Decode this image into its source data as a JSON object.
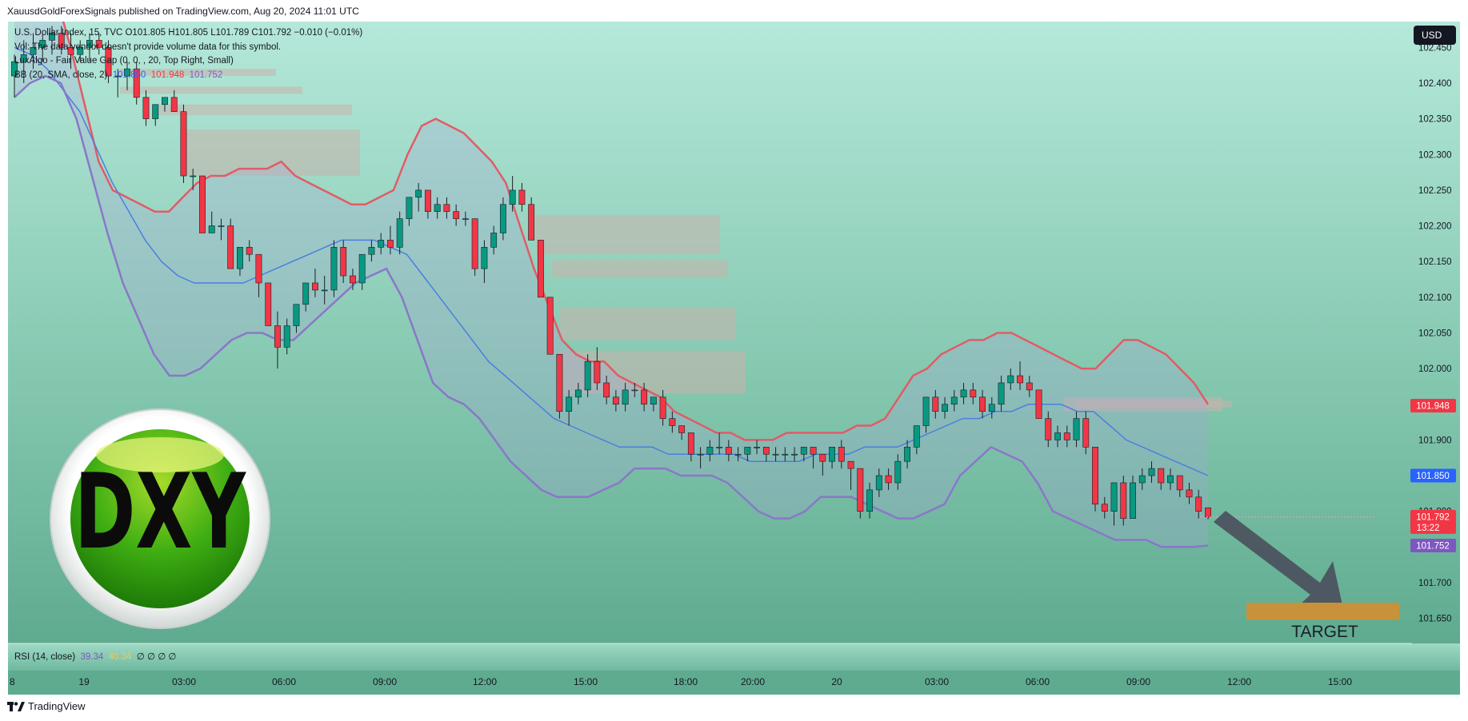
{
  "header": {
    "publish_line": "XauusdGoldForexSignals published on TradingView.com, Aug 20, 2024 11:01 UTC"
  },
  "legend": {
    "symbol_line": "U.S. Dollar Index, 15, TVC  O101.805  H101.805  L101.789  C101.792  −0.010 (−0.01%)",
    "vol_line": "Vol: The data vendor doesn't provide volume data for this symbol.",
    "fvg_line": "LuxAlgo - Fair Value Gap (0, 0, , 20, Top Right, Small)",
    "bb_name": "BB (20, SMA, close, 2)",
    "bb_basis": "101.850",
    "bb_upper": "101.948",
    "bb_lower": "101.752"
  },
  "currency_button": "USD",
  "rsi": {
    "label": "RSI (14, close)",
    "value1": "39.34",
    "value2": "40.34",
    "extra": "∅ ∅ ∅ ∅"
  },
  "annotation": {
    "logo_text": "DXY",
    "target_label": "TARGET"
  },
  "footer": {
    "brand": "TradingView"
  },
  "colors": {
    "bg_top": "#b3e6d9",
    "bg_bottom": "#5fae93",
    "up_candle": "#089981",
    "down_candle": "#f23645",
    "bb_upper": "#e05c66",
    "bb_basis": "#4a7fe0",
    "bb_lower": "#8a77c8",
    "target_box": "#c8923a",
    "arrow": "#4a4f5c",
    "logo_green": "#2f9a10"
  },
  "chart_data": {
    "type": "candlestick",
    "symbol": "U.S. Dollar Index",
    "timeframe": "15",
    "y_ticks": [
      "102.450",
      "102.400",
      "102.350",
      "102.300",
      "102.250",
      "102.200",
      "102.150",
      "102.100",
      "102.050",
      "102.000",
      "101.950",
      "101.900",
      "101.850",
      "101.800",
      "101.750",
      "101.700",
      "101.650"
    ],
    "ylim": [
      101.635,
      102.475
    ],
    "x_ticks": [
      "8",
      "19",
      "03:00",
      "06:00",
      "09:00",
      "12:00",
      "15:00",
      "18:00",
      "20:00",
      "20",
      "03:00",
      "06:00",
      "09:00",
      "12:00",
      "15:00"
    ],
    "price_labels": [
      {
        "value": 101.948,
        "text": "101.948",
        "color": "#f23645"
      },
      {
        "value": 101.85,
        "text": "101.850",
        "color": "#2962ff"
      },
      {
        "value": 101.792,
        "text": "101.792",
        "sub": "13:22",
        "color": "#f23645"
      },
      {
        "value": 101.752,
        "text": "101.752",
        "color": "#7e57c2"
      }
    ],
    "last_close": 101.792,
    "target_zone": [
      101.648,
      101.672
    ],
    "candles": [
      [
        102.41,
        102.44,
        102.38,
        102.43
      ],
      [
        102.43,
        102.46,
        102.4,
        102.44
      ],
      [
        102.44,
        102.47,
        102.42,
        102.45
      ],
      [
        102.45,
        102.47,
        102.43,
        102.46
      ],
      [
        102.46,
        102.48,
        102.44,
        102.47
      ],
      [
        102.47,
        102.48,
        102.44,
        102.45
      ],
      [
        102.45,
        102.47,
        102.42,
        102.44
      ],
      [
        102.44,
        102.46,
        102.43,
        102.45
      ],
      [
        102.45,
        102.47,
        102.43,
        102.46
      ],
      [
        102.46,
        102.47,
        102.44,
        102.45
      ],
      [
        102.45,
        102.46,
        102.4,
        102.41
      ],
      [
        102.41,
        102.42,
        102.38,
        102.41
      ],
      [
        102.41,
        102.43,
        102.39,
        102.42
      ],
      [
        102.42,
        102.43,
        102.37,
        102.38
      ],
      [
        102.38,
        102.39,
        102.34,
        102.35
      ],
      [
        102.35,
        102.37,
        102.34,
        102.37
      ],
      [
        102.37,
        102.38,
        102.36,
        102.38
      ],
      [
        102.38,
        102.39,
        102.36,
        102.36
      ],
      [
        102.36,
        102.37,
        102.26,
        102.27
      ],
      [
        102.27,
        102.28,
        102.25,
        102.27
      ],
      [
        102.27,
        102.27,
        102.19,
        102.19
      ],
      [
        102.19,
        102.22,
        102.19,
        102.2
      ],
      [
        102.2,
        102.21,
        102.18,
        102.2
      ],
      [
        102.2,
        102.21,
        102.14,
        102.14
      ],
      [
        102.14,
        102.17,
        102.13,
        102.17
      ],
      [
        102.17,
        102.18,
        102.15,
        102.16
      ],
      [
        102.16,
        102.16,
        102.1,
        102.12
      ],
      [
        102.12,
        102.12,
        102.06,
        102.06
      ],
      [
        102.06,
        102.08,
        102.0,
        102.03
      ],
      [
        102.03,
        102.07,
        102.02,
        102.06
      ],
      [
        102.06,
        102.09,
        102.05,
        102.09
      ],
      [
        102.09,
        102.12,
        102.08,
        102.12
      ],
      [
        102.12,
        102.14,
        102.1,
        102.11
      ],
      [
        102.11,
        102.13,
        102.09,
        102.11
      ],
      [
        102.11,
        102.18,
        102.1,
        102.17
      ],
      [
        102.17,
        102.18,
        102.12,
        102.13
      ],
      [
        102.13,
        102.14,
        102.11,
        102.12
      ],
      [
        102.12,
        102.16,
        102.11,
        102.16
      ],
      [
        102.16,
        102.18,
        102.15,
        102.17
      ],
      [
        102.17,
        102.19,
        102.16,
        102.18
      ],
      [
        102.18,
        102.2,
        102.16,
        102.17
      ],
      [
        102.17,
        102.22,
        102.16,
        102.21
      ],
      [
        102.21,
        102.24,
        102.2,
        102.24
      ],
      [
        102.24,
        102.26,
        102.22,
        102.25
      ],
      [
        102.25,
        102.25,
        102.21,
        102.22
      ],
      [
        102.22,
        102.24,
        102.21,
        102.23
      ],
      [
        102.23,
        102.24,
        102.21,
        102.22
      ],
      [
        102.22,
        102.23,
        102.2,
        102.21
      ],
      [
        102.21,
        102.22,
        102.2,
        102.21
      ],
      [
        102.21,
        102.21,
        102.13,
        102.14
      ],
      [
        102.14,
        102.18,
        102.12,
        102.17
      ],
      [
        102.17,
        102.2,
        102.16,
        102.19
      ],
      [
        102.19,
        102.24,
        102.18,
        102.23
      ],
      [
        102.23,
        102.27,
        102.22,
        102.25
      ],
      [
        102.25,
        102.26,
        102.22,
        102.23
      ],
      [
        102.23,
        102.24,
        102.18,
        102.18
      ],
      [
        102.18,
        102.18,
        102.1,
        102.1
      ],
      [
        102.1,
        102.1,
        102.02,
        102.02
      ],
      [
        102.02,
        102.02,
        101.93,
        101.94
      ],
      [
        101.94,
        101.97,
        101.92,
        101.96
      ],
      [
        101.96,
        101.98,
        101.95,
        101.97
      ],
      [
        101.97,
        102.02,
        101.96,
        102.01
      ],
      [
        102.01,
        102.03,
        101.97,
        101.98
      ],
      [
        101.98,
        101.99,
        101.95,
        101.96
      ],
      [
        101.96,
        101.97,
        101.94,
        101.95
      ],
      [
        101.95,
        101.98,
        101.94,
        101.97
      ],
      [
        101.97,
        101.98,
        101.96,
        101.97
      ],
      [
        101.97,
        101.98,
        101.94,
        101.95
      ],
      [
        101.95,
        101.96,
        101.94,
        101.96
      ],
      [
        101.96,
        101.97,
        101.92,
        101.93
      ],
      [
        101.93,
        101.94,
        101.91,
        101.92
      ],
      [
        101.92,
        101.92,
        101.9,
        101.91
      ],
      [
        101.91,
        101.91,
        101.87,
        101.88
      ],
      [
        101.88,
        101.89,
        101.86,
        101.88
      ],
      [
        101.88,
        101.9,
        101.87,
        101.89
      ],
      [
        101.89,
        101.91,
        101.88,
        101.89
      ],
      [
        101.89,
        101.9,
        101.87,
        101.88
      ],
      [
        101.88,
        101.89,
        101.87,
        101.88
      ],
      [
        101.88,
        101.89,
        101.87,
        101.89
      ],
      [
        101.89,
        101.9,
        101.88,
        101.89
      ],
      [
        101.89,
        101.89,
        101.87,
        101.88
      ],
      [
        101.88,
        101.89,
        101.87,
        101.88
      ],
      [
        101.88,
        101.89,
        101.87,
        101.88
      ],
      [
        101.88,
        101.89,
        101.87,
        101.88
      ],
      [
        101.88,
        101.89,
        101.87,
        101.89
      ],
      [
        101.89,
        101.89,
        101.86,
        101.88
      ],
      [
        101.88,
        101.88,
        101.85,
        101.87
      ],
      [
        101.87,
        101.89,
        101.86,
        101.89
      ],
      [
        101.89,
        101.9,
        101.86,
        101.87
      ],
      [
        101.87,
        101.87,
        101.83,
        101.86
      ],
      [
        101.86,
        101.86,
        101.79,
        101.8
      ],
      [
        101.8,
        101.84,
        101.79,
        101.83
      ],
      [
        101.83,
        101.86,
        101.82,
        101.85
      ],
      [
        101.85,
        101.86,
        101.83,
        101.84
      ],
      [
        101.84,
        101.88,
        101.83,
        101.87
      ],
      [
        101.87,
        101.9,
        101.86,
        101.89
      ],
      [
        101.89,
        101.92,
        101.88,
        101.92
      ],
      [
        101.92,
        101.96,
        101.91,
        101.96
      ],
      [
        101.96,
        101.97,
        101.93,
        101.94
      ],
      [
        101.94,
        101.96,
        101.93,
        101.95
      ],
      [
        101.95,
        101.97,
        101.94,
        101.96
      ],
      [
        101.96,
        101.98,
        101.95,
        101.97
      ],
      [
        101.97,
        101.98,
        101.95,
        101.96
      ],
      [
        101.96,
        101.97,
        101.93,
        101.94
      ],
      [
        101.94,
        101.96,
        101.93,
        101.95
      ],
      [
        101.95,
        101.99,
        101.94,
        101.98
      ],
      [
        101.98,
        102.0,
        101.97,
        101.99
      ],
      [
        101.99,
        102.01,
        101.97,
        101.98
      ],
      [
        101.98,
        101.99,
        101.96,
        101.97
      ],
      [
        101.97,
        101.97,
        101.93,
        101.93
      ],
      [
        101.93,
        101.94,
        101.89,
        101.9
      ],
      [
        101.9,
        101.92,
        101.89,
        101.91
      ],
      [
        101.91,
        101.92,
        101.89,
        101.9
      ],
      [
        101.9,
        101.94,
        101.89,
        101.93
      ],
      [
        101.93,
        101.94,
        101.88,
        101.89
      ],
      [
        101.89,
        101.89,
        101.8,
        101.81
      ],
      [
        101.81,
        101.82,
        101.79,
        101.8
      ],
      [
        101.8,
        101.84,
        101.78,
        101.84
      ],
      [
        101.84,
        101.85,
        101.78,
        101.79
      ],
      [
        101.79,
        101.85,
        101.79,
        101.84
      ],
      [
        101.84,
        101.86,
        101.83,
        101.85
      ],
      [
        101.85,
        101.87,
        101.84,
        101.86
      ],
      [
        101.86,
        101.86,
        101.83,
        101.84
      ],
      [
        101.84,
        101.86,
        101.83,
        101.85
      ],
      [
        101.85,
        101.85,
        101.82,
        101.83
      ],
      [
        101.83,
        101.84,
        101.81,
        101.82
      ],
      [
        101.82,
        101.83,
        101.79,
        101.8
      ],
      [
        101.805,
        101.805,
        101.789,
        101.792
      ]
    ],
    "bb_upper": [
      102.62,
      102.6,
      102.58,
      102.52,
      102.45,
      102.37,
      102.29,
      102.25,
      102.24,
      102.23,
      102.22,
      102.22,
      102.24,
      102.26,
      102.27,
      102.27,
      102.28,
      102.28,
      102.28,
      102.29,
      102.27,
      102.26,
      102.25,
      102.24,
      102.23,
      102.23,
      102.24,
      102.25,
      102.3,
      102.34,
      102.35,
      102.34,
      102.33,
      102.31,
      102.29,
      102.26,
      102.2,
      102.14,
      102.09,
      102.04,
      102.02,
      102.01,
      102.01,
      101.99,
      101.98,
      101.97,
      101.96,
      101.94,
      101.93,
      101.92,
      101.91,
      101.91,
      101.9,
      101.9,
      101.9,
      101.91,
      101.91,
      101.91,
      101.91,
      101.91,
      101.92,
      101.92,
      101.93,
      101.96,
      101.99,
      102.0,
      102.02,
      102.03,
      102.04,
      102.04,
      102.05,
      102.05,
      102.04,
      102.03,
      102.02,
      102.01,
      102.0,
      102.0,
      102.02,
      102.04,
      102.04,
      102.03,
      102.02,
      102.0,
      101.98,
      101.95
    ],
    "bb_basis": [
      102.45,
      102.44,
      102.42,
      102.39,
      102.36,
      102.31,
      102.26,
      102.22,
      102.18,
      102.15,
      102.13,
      102.12,
      102.12,
      102.12,
      102.12,
      102.13,
      102.14,
      102.15,
      102.16,
      102.17,
      102.18,
      102.18,
      102.18,
      102.17,
      102.16,
      102.13,
      102.1,
      102.07,
      102.04,
      102.01,
      101.99,
      101.97,
      101.95,
      101.93,
      101.92,
      101.91,
      101.9,
      101.89,
      101.89,
      101.89,
      101.88,
      101.88,
      101.88,
      101.88,
      101.88,
      101.87,
      101.87,
      101.87,
      101.87,
      101.88,
      101.88,
      101.88,
      101.89,
      101.89,
      101.89,
      101.9,
      101.91,
      101.92,
      101.93,
      101.93,
      101.94,
      101.94,
      101.95,
      101.95,
      101.95,
      101.94,
      101.94,
      101.92,
      101.9,
      101.89,
      101.88,
      101.87,
      101.86,
      101.85
    ],
    "bb_lower": [
      102.38,
      102.4,
      102.41,
      102.4,
      102.35,
      102.27,
      102.19,
      102.12,
      102.07,
      102.02,
      101.99,
      101.99,
      102.0,
      102.02,
      102.04,
      102.05,
      102.05,
      102.04,
      102.04,
      102.06,
      102.08,
      102.1,
      102.12,
      102.13,
      102.14,
      102.1,
      102.04,
      101.98,
      101.96,
      101.95,
      101.93,
      101.9,
      101.87,
      101.85,
      101.83,
      101.82,
      101.82,
      101.82,
      101.83,
      101.84,
      101.86,
      101.86,
      101.86,
      101.85,
      101.85,
      101.85,
      101.84,
      101.82,
      101.8,
      101.79,
      101.79,
      101.8,
      101.82,
      101.82,
      101.82,
      101.81,
      101.8,
      101.79,
      101.79,
      101.8,
      101.81,
      101.85,
      101.87,
      101.89,
      101.88,
      101.87,
      101.84,
      101.8,
      101.79,
      101.78,
      101.77,
      101.76,
      101.76,
      101.76,
      101.75,
      101.75,
      101.75,
      101.752
    ],
    "fvg_boxes": [
      [
        102.41,
        102.42
      ],
      [
        102.385,
        102.395
      ],
      [
        102.355,
        102.37
      ],
      [
        102.27,
        102.335
      ],
      [
        102.16,
        102.215
      ],
      [
        102.128,
        102.152
      ],
      [
        102.04,
        102.085
      ],
      [
        101.965,
        102.025
      ],
      [
        101.94,
        101.96
      ],
      [
        101.945,
        101.955
      ]
    ]
  }
}
